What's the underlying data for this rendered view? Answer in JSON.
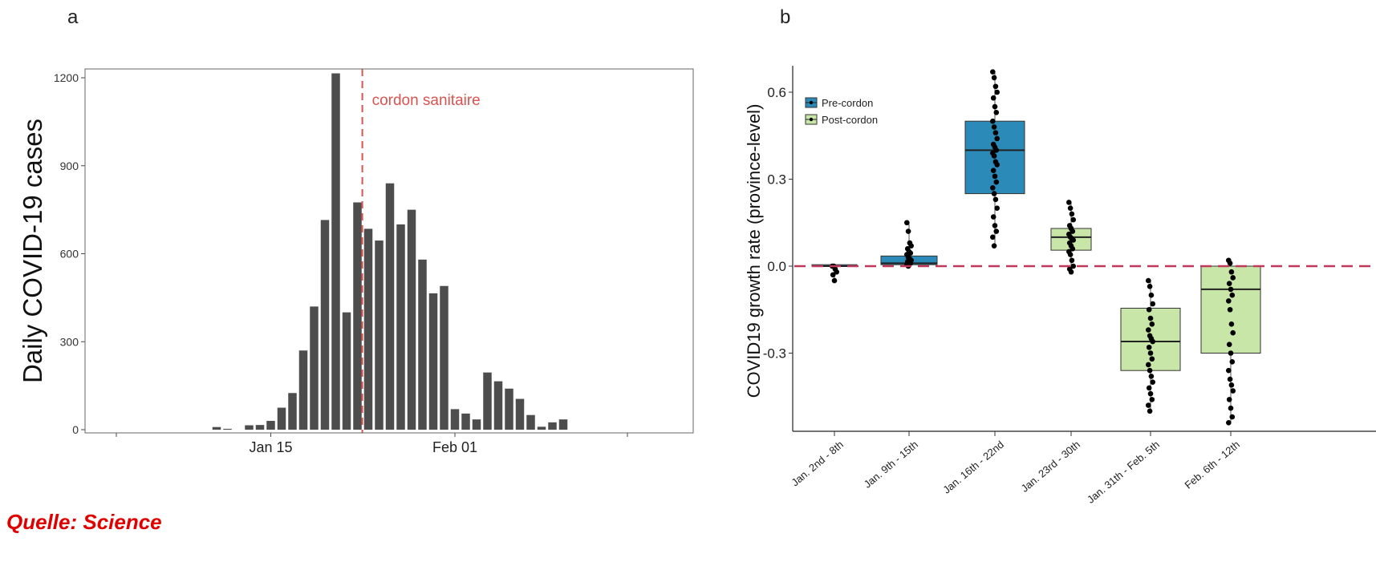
{
  "panel_a_letter": "a",
  "panel_b_letter": "b",
  "source_note": "Quelle: Science",
  "colors": {
    "bar": "#4d4d4d",
    "cordon_line": "#d9534f",
    "pre_cordon_fill": "#2b8ab8",
    "post_cordon_fill": "#c8e6a8",
    "zero_line": "#c0395a"
  },
  "chart_data": [
    {
      "type": "bar",
      "panel": "a",
      "ylabel": "Daily COVID-19 cases",
      "xlabel": "",
      "ylim": [
        0,
        1220
      ],
      "yticks": [
        0,
        300,
        600,
        900,
        1200
      ],
      "xticks": [
        "Jan 15",
        "Feb 01"
      ],
      "grid": false,
      "annotation": {
        "text": "cordon sanitaire",
        "date": "Jan 23"
      },
      "dates": [
        "Jan 10",
        "Jan 11",
        "Jan 12",
        "Jan 13",
        "Jan 14",
        "Jan 15",
        "Jan 16",
        "Jan 17",
        "Jan 18",
        "Jan 19",
        "Jan 20",
        "Jan 21",
        "Jan 22",
        "Jan 23",
        "Jan 24",
        "Jan 25",
        "Jan 26",
        "Jan 27",
        "Jan 28",
        "Jan 29",
        "Jan 30",
        "Jan 31",
        "Feb 01",
        "Feb 02",
        "Feb 03",
        "Feb 04",
        "Feb 05",
        "Feb 06",
        "Feb 07",
        "Feb 08",
        "Feb 09",
        "Feb 10",
        "Feb 11",
        "Feb 12"
      ],
      "values": [
        9,
        3,
        0,
        15,
        16,
        30,
        75,
        125,
        270,
        420,
        715,
        1215,
        400,
        775,
        685,
        645,
        840,
        700,
        750,
        580,
        465,
        490,
        70,
        55,
        35,
        195,
        165,
        140,
        105,
        50,
        10,
        25,
        35,
        0
      ]
    },
    {
      "type": "box",
      "panel": "b",
      "ylabel": "COVID19 growth rate (province-level)",
      "xlabel": "",
      "ylim": [
        -0.56,
        0.68
      ],
      "yticks": [
        -0.3,
        0.0,
        0.3,
        0.6
      ],
      "ytick_labels": [
        "-0.3",
        "0.0",
        "0.3",
        "0.6"
      ],
      "reference_line": 0.0,
      "legend": {
        "position": "top-left",
        "entries": [
          "Pre-cordon",
          "Post-cordon"
        ]
      },
      "categories": [
        "Jan. 2nd - 8th",
        "Jan. 9th - 15th",
        "Jan. 16th - 22nd",
        "Jan. 23rd - 30th",
        "Jan. 31th - Feb. 5th",
        "Feb. 6th - 12th"
      ],
      "boxes": [
        {
          "group": "Pre-cordon",
          "q1": 0.0,
          "median": 0.0,
          "q3": 0.005,
          "points": [
            0.0,
            0.0,
            -0.01,
            -0.02,
            -0.03,
            -0.05
          ]
        },
        {
          "group": "Pre-cordon",
          "q1": 0.005,
          "median": 0.01,
          "q3": 0.035,
          "points": [
            0.15,
            0.12,
            0.08,
            0.07,
            0.06,
            0.05,
            0.045,
            0.04,
            0.03,
            0.025,
            0.02,
            0.015,
            0.01,
            0.01,
            0.005,
            0.0
          ]
        },
        {
          "group": "Pre-cordon",
          "q1": 0.25,
          "median": 0.4,
          "q3": 0.5,
          "points": [
            0.67,
            0.65,
            0.62,
            0.6,
            0.58,
            0.55,
            0.53,
            0.5,
            0.48,
            0.46,
            0.44,
            0.42,
            0.41,
            0.4,
            0.39,
            0.38,
            0.36,
            0.35,
            0.33,
            0.31,
            0.29,
            0.27,
            0.25,
            0.23,
            0.2,
            0.17,
            0.14,
            0.12,
            0.1,
            0.07
          ]
        },
        {
          "group": "Post-cordon",
          "q1": 0.055,
          "median": 0.1,
          "q3": 0.13,
          "points": [
            0.22,
            0.2,
            0.18,
            0.16,
            0.14,
            0.13,
            0.12,
            0.11,
            0.1,
            0.095,
            0.09,
            0.08,
            0.07,
            0.06,
            0.05,
            0.04,
            0.02,
            0.0,
            -0.01,
            -0.02
          ]
        },
        {
          "group": "Post-cordon",
          "q1": -0.36,
          "median": -0.26,
          "q3": -0.145,
          "points": [
            -0.05,
            -0.07,
            -0.1,
            -0.13,
            -0.15,
            -0.18,
            -0.2,
            -0.22,
            -0.24,
            -0.25,
            -0.26,
            -0.28,
            -0.3,
            -0.32,
            -0.34,
            -0.36,
            -0.38,
            -0.4,
            -0.42,
            -0.44,
            -0.46,
            -0.48,
            -0.5
          ]
        },
        {
          "group": "Post-cordon",
          "q1": -0.3,
          "median": -0.08,
          "q3": 0.0,
          "points": [
            0.02,
            0.01,
            -0.02,
            -0.04,
            -0.06,
            -0.08,
            -0.1,
            -0.12,
            -0.15,
            -0.2,
            -0.23,
            -0.27,
            -0.3,
            -0.33,
            -0.36,
            -0.39,
            -0.41,
            -0.43,
            -0.46,
            -0.49,
            -0.52,
            -0.54
          ]
        }
      ]
    }
  ]
}
